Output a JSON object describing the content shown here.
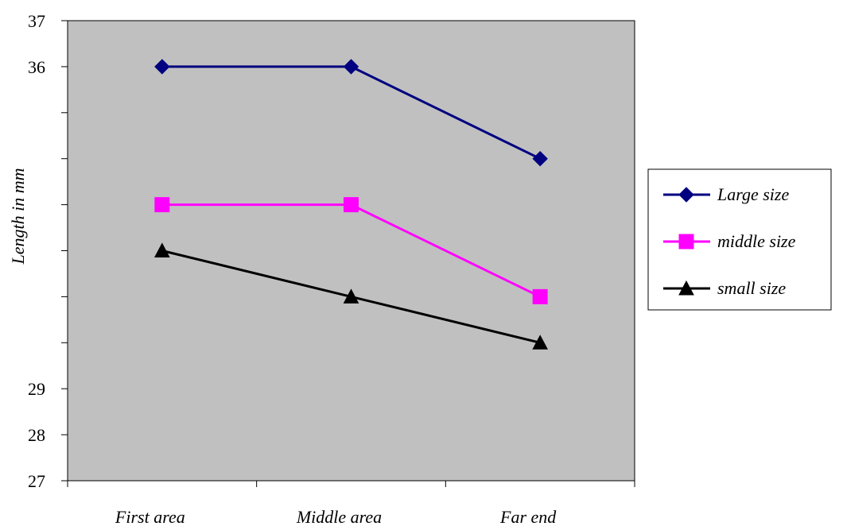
{
  "chart_data": {
    "type": "line",
    "title": "",
    "xlabel": "",
    "ylabel": "Length in mm",
    "categories": [
      "First area",
      "Middle area",
      "Far end"
    ],
    "ylim": [
      27,
      37
    ],
    "y_ticks": [
      27,
      28,
      29,
      30,
      31,
      32,
      33,
      34,
      35,
      36,
      37
    ],
    "y_tick_labels_shown": [
      27,
      28,
      29,
      36,
      37
    ],
    "grid": false,
    "plot_background": "#c0c0c0",
    "legend_position": "right",
    "series": [
      {
        "name": "Large size",
        "values": [
          36,
          36,
          34
        ],
        "color": "#000080",
        "marker": "diamond"
      },
      {
        "name": "middle size",
        "values": [
          33,
          33,
          31
        ],
        "color": "#ff00ff",
        "marker": "square"
      },
      {
        "name": "small size",
        "values": [
          32,
          31,
          30
        ],
        "color": "#000000",
        "marker": "triangle"
      }
    ]
  }
}
